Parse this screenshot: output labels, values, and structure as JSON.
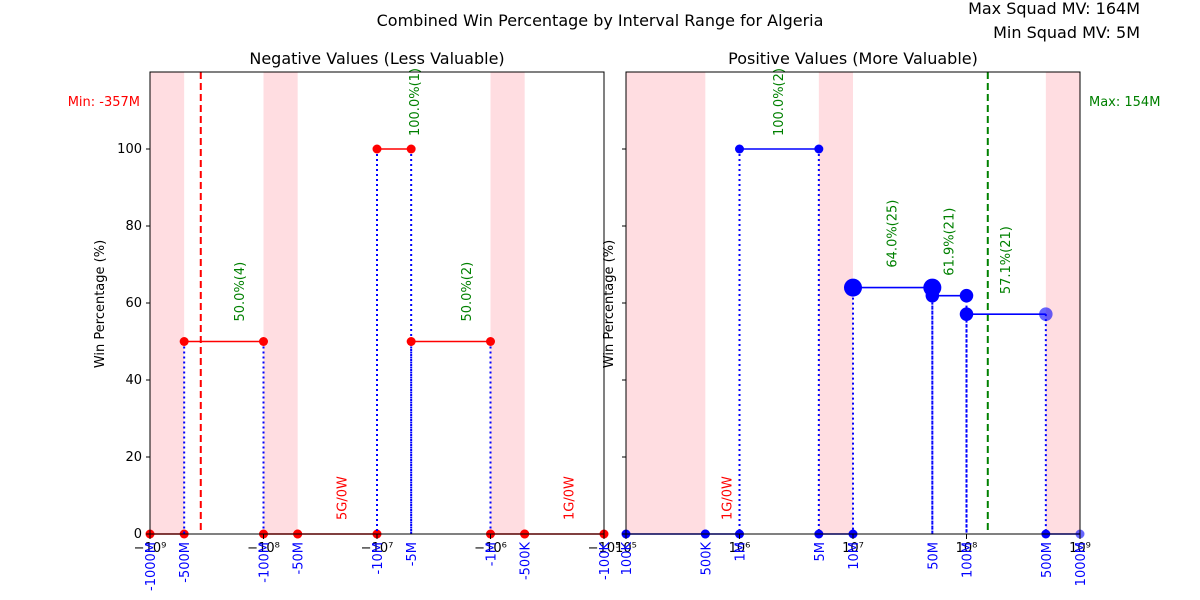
{
  "figure": {
    "title": "Combined Win Percentage by Interval Range for Algeria",
    "max_mv_label": "Max Squad MV: 164M",
    "min_mv_label": "Min Squad MV: 5M"
  },
  "colors": {
    "negative": "#ff0000",
    "positive": "#0000ff",
    "annotation_green": "#008000",
    "annotation_red": "#ff0000",
    "shade": "#ffdde1",
    "tick_blue": "#0000ff"
  },
  "chart_data": [
    {
      "type": "line",
      "title": "Negative Values (Less Valuable)",
      "ylabel": "Win Percentage (%)",
      "xscale": "symlog",
      "xlim": [
        -1000000000,
        -100000
      ],
      "ylim": [
        0,
        120
      ],
      "yticks": [
        0,
        20,
        40,
        60,
        80,
        100
      ],
      "xticks_major": [
        {
          "value": -1000000000,
          "label": "−10⁹"
        },
        {
          "value": -100000000,
          "label": "−10⁸"
        },
        {
          "value": -10000000,
          "label": "−10⁷"
        },
        {
          "value": -1000000,
          "label": "−10⁶"
        },
        {
          "value": -100000,
          "label": "−10⁵"
        }
      ],
      "interval_ticks": [
        {
          "value": -1000000000,
          "label": "-1000M"
        },
        {
          "value": -500000000,
          "label": "-500M"
        },
        {
          "value": -100000000,
          "label": "-100M"
        },
        {
          "value": -50000000,
          "label": "-50M"
        },
        {
          "value": -10000000,
          "label": "-10M"
        },
        {
          "value": -5000000,
          "label": "-5M"
        },
        {
          "value": -1000000,
          "label": "-1M"
        },
        {
          "value": -500000,
          "label": "-500K"
        },
        {
          "value": -100000,
          "label": "-100K"
        }
      ],
      "shaded_regions": [
        [
          -1000000000,
          -500000000
        ],
        [
          -100000000,
          -50000000
        ],
        [
          -1000000,
          -500000
        ]
      ],
      "reference_line": {
        "value": -357000000,
        "label": "Min: -357M"
      },
      "segments": [
        {
          "x": [
            -1000000000,
            -500000000
          ],
          "y": 0
        },
        {
          "x": [
            -500000000,
            -100000000
          ],
          "y": 50,
          "label": "50.0%(4)"
        },
        {
          "x": [
            -100000000,
            -50000000
          ],
          "y": 0
        },
        {
          "x": [
            -50000000,
            -10000000
          ],
          "y": 0,
          "label": "5G/0W"
        },
        {
          "x": [
            -10000000,
            -5000000
          ],
          "y": 100,
          "label": "100.0%(1)"
        },
        {
          "x": [
            -5000000,
            -1000000
          ],
          "y": 50,
          "label": "50.0%(2)"
        },
        {
          "x": [
            -1000000,
            -500000
          ],
          "y": 0
        },
        {
          "x": [
            -500000,
            -100000
          ],
          "y": 0,
          "label": "1G/0W"
        }
      ]
    },
    {
      "type": "line",
      "title": "Positive Values (More Valuable)",
      "ylabel": "Win Percentage (%)",
      "xscale": "log",
      "xlim": [
        100000,
        1000000000
      ],
      "ylim": [
        0,
        120
      ],
      "yticks": [
        0,
        20,
        40,
        60,
        80,
        100
      ],
      "xticks_major": [
        {
          "value": 100000,
          "label": "10⁵"
        },
        {
          "value": 1000000,
          "label": "10⁶"
        },
        {
          "value": 10000000,
          "label": "10⁷"
        },
        {
          "value": 100000000,
          "label": "10⁸"
        },
        {
          "value": 1000000000,
          "label": "10⁹"
        }
      ],
      "interval_ticks": [
        {
          "value": 100000,
          "label": "100K"
        },
        {
          "value": 500000,
          "label": "500K"
        },
        {
          "value": 1000000,
          "label": "1M"
        },
        {
          "value": 5000000,
          "label": "5M"
        },
        {
          "value": 10000000,
          "label": "10M"
        },
        {
          "value": 50000000,
          "label": "50M"
        },
        {
          "value": 100000000,
          "label": "100M"
        },
        {
          "value": 500000000,
          "label": "500M"
        },
        {
          "value": 1000000000,
          "label": "1000M"
        }
      ],
      "shaded_regions": [
        [
          100000,
          500000
        ],
        [
          5000000,
          10000000
        ],
        [
          500000000,
          1000000000
        ]
      ],
      "reference_line": {
        "value": 154000000,
        "label": "Max: 154M"
      },
      "segments": [
        {
          "x": [
            100000,
            500000
          ],
          "y": 0
        },
        {
          "x": [
            500000,
            1000000
          ],
          "y": 0,
          "label": "1G/0W"
        },
        {
          "x": [
            1000000,
            5000000
          ],
          "y": 100,
          "label": "100.0%(2)"
        },
        {
          "x": [
            5000000,
            10000000
          ],
          "y": 0
        },
        {
          "x": [
            10000000,
            50000000
          ],
          "y": 64.0,
          "label": "64.0%(25)",
          "size": 2
        },
        {
          "x": [
            50000000,
            100000000
          ],
          "y": 61.9,
          "label": "61.9%(21)",
          "size": 1.5
        },
        {
          "x": [
            100000000,
            500000000
          ],
          "y": 57.1,
          "label": "57.1%(21)",
          "size": 1.5
        },
        {
          "x": [
            500000000,
            1000000000
          ],
          "y": 0
        }
      ]
    }
  ]
}
